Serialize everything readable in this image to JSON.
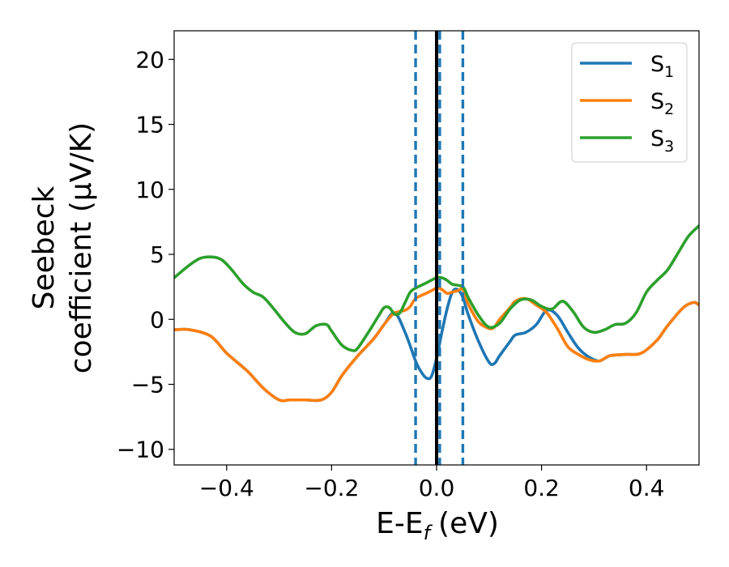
{
  "chart_data": {
    "type": "line",
    "xlabel": "E-E",
    "xlabel_sub": "f",
    "xlabel_unit": "(eV)",
    "ylabel_line1": "Seebeck",
    "ylabel_line2": "coefficient  (μV/K)",
    "xlim": [
      -0.5,
      0.5
    ],
    "ylim": [
      -11.2,
      22.2
    ],
    "xticks": [
      -0.4,
      -0.2,
      0.0,
      0.2,
      0.4
    ],
    "xtick_labels": [
      "−0.4",
      "−0.2",
      "0.0",
      "0.2",
      "0.4"
    ],
    "yticks": [
      -10,
      -5,
      0,
      5,
      10,
      15,
      20
    ],
    "ytick_labels": [
      "−10",
      "−5",
      "0",
      "5",
      "10",
      "15",
      "20"
    ],
    "legend_position": "top-right",
    "vlines": [
      {
        "x": -0.04,
        "style": "dashed",
        "color": "#1f77b4"
      },
      {
        "x": 0.0,
        "style": "solid",
        "color": "#000000"
      },
      {
        "x": 0.006,
        "style": "dashed",
        "color": "#1f77b4"
      },
      {
        "x": 0.05,
        "style": "dashed",
        "color": "#1f77b4"
      }
    ],
    "series": [
      {
        "name": "S",
        "sub": "1",
        "color": "#1f77b4",
        "x": [
          -0.5,
          -0.47,
          -0.43,
          -0.4,
          -0.36,
          -0.33,
          -0.3,
          -0.28,
          -0.25,
          -0.22,
          -0.2,
          -0.18,
          -0.15,
          -0.12,
          -0.1,
          -0.08,
          -0.06,
          -0.04,
          -0.03,
          -0.02,
          -0.01,
          0.0,
          0.01,
          0.02,
          0.03,
          0.04,
          0.05,
          0.06,
          0.08,
          0.1,
          0.11,
          0.12,
          0.14,
          0.15,
          0.17,
          0.19,
          0.21,
          0.23,
          0.25,
          0.27,
          0.29,
          0.31,
          0.33,
          0.36,
          0.39,
          0.42,
          0.44,
          0.47,
          0.49,
          0.5
        ],
        "y": [
          -0.8,
          -0.8,
          -1.3,
          -2.6,
          -4.0,
          -5.3,
          -6.2,
          -6.2,
          -6.2,
          -6.2,
          -5.6,
          -4.3,
          -2.8,
          -1.5,
          -0.4,
          0.5,
          -1.0,
          -3.2,
          -4.0,
          -4.5,
          -4.4,
          -3.0,
          -1.0,
          0.8,
          2.1,
          2.3,
          1.7,
          0.4,
          -1.7,
          -3.3,
          -3.4,
          -2.8,
          -1.7,
          -1.2,
          -1.0,
          -0.4,
          0.7,
          0.3,
          -1.0,
          -2.2,
          -2.9,
          -3.2,
          -2.8,
          -2.7,
          -2.6,
          -1.6,
          -0.5,
          0.9,
          1.3,
          1.1
        ]
      },
      {
        "name": "S",
        "sub": "2",
        "color": "#ff7f0e",
        "x": [
          -0.5,
          -0.47,
          -0.43,
          -0.4,
          -0.36,
          -0.33,
          -0.3,
          -0.28,
          -0.25,
          -0.22,
          -0.2,
          -0.18,
          -0.15,
          -0.12,
          -0.1,
          -0.09,
          -0.08,
          -0.06,
          -0.05,
          -0.04,
          -0.02,
          -0.01,
          0.0,
          0.01,
          0.02,
          0.03,
          0.04,
          0.05,
          0.06,
          0.08,
          0.1,
          0.11,
          0.12,
          0.14,
          0.15,
          0.17,
          0.19,
          0.21,
          0.23,
          0.25,
          0.27,
          0.29,
          0.31,
          0.33,
          0.36,
          0.39,
          0.42,
          0.44,
          0.47,
          0.49,
          0.5
        ],
        "y": [
          -0.8,
          -0.8,
          -1.3,
          -2.6,
          -4.0,
          -5.3,
          -6.2,
          -6.2,
          -6.2,
          -6.2,
          -5.6,
          -4.3,
          -2.8,
          -1.5,
          -0.4,
          0.1,
          0.5,
          0.7,
          1.0,
          1.6,
          2.0,
          2.2,
          2.4,
          2.3,
          2.0,
          2.1,
          2.2,
          2.3,
          1.2,
          -0.2,
          -0.7,
          -0.6,
          0.0,
          0.9,
          1.4,
          1.6,
          1.1,
          0.5,
          -0.7,
          -2.1,
          -2.7,
          -3.1,
          -3.2,
          -2.8,
          -2.7,
          -2.6,
          -1.6,
          -0.5,
          0.9,
          1.3,
          1.1
        ]
      },
      {
        "name": "S",
        "sub": "3",
        "color": "#2ca02c",
        "x": [
          -0.5,
          -0.47,
          -0.45,
          -0.43,
          -0.41,
          -0.39,
          -0.37,
          -0.35,
          -0.33,
          -0.31,
          -0.29,
          -0.27,
          -0.25,
          -0.23,
          -0.21,
          -0.2,
          -0.18,
          -0.16,
          -0.15,
          -0.13,
          -0.11,
          -0.1,
          -0.09,
          -0.08,
          -0.07,
          -0.06,
          -0.05,
          -0.04,
          -0.02,
          0.0,
          0.01,
          0.02,
          0.03,
          0.05,
          0.06,
          0.08,
          0.1,
          0.12,
          0.14,
          0.16,
          0.18,
          0.2,
          0.22,
          0.24,
          0.26,
          0.28,
          0.3,
          0.32,
          0.34,
          0.36,
          0.38,
          0.4,
          0.42,
          0.44,
          0.46,
          0.48,
          0.5
        ],
        "y": [
          3.2,
          4.2,
          4.7,
          4.8,
          4.6,
          3.8,
          2.8,
          2.1,
          1.7,
          0.8,
          -0.2,
          -1.0,
          -1.1,
          -0.5,
          -0.4,
          -0.9,
          -2.0,
          -2.4,
          -2.2,
          -1.0,
          0.3,
          0.9,
          0.9,
          0.4,
          0.5,
          1.3,
          2.1,
          2.4,
          2.8,
          3.2,
          3.2,
          3.0,
          2.7,
          2.5,
          1.7,
          0.3,
          -0.6,
          -0.3,
          0.8,
          1.5,
          1.5,
          1.0,
          0.8,
          1.4,
          0.6,
          -0.6,
          -1.0,
          -0.8,
          -0.4,
          -0.3,
          0.5,
          2.1,
          3.0,
          3.8,
          5.1,
          6.4,
          7.2
        ]
      }
    ]
  }
}
